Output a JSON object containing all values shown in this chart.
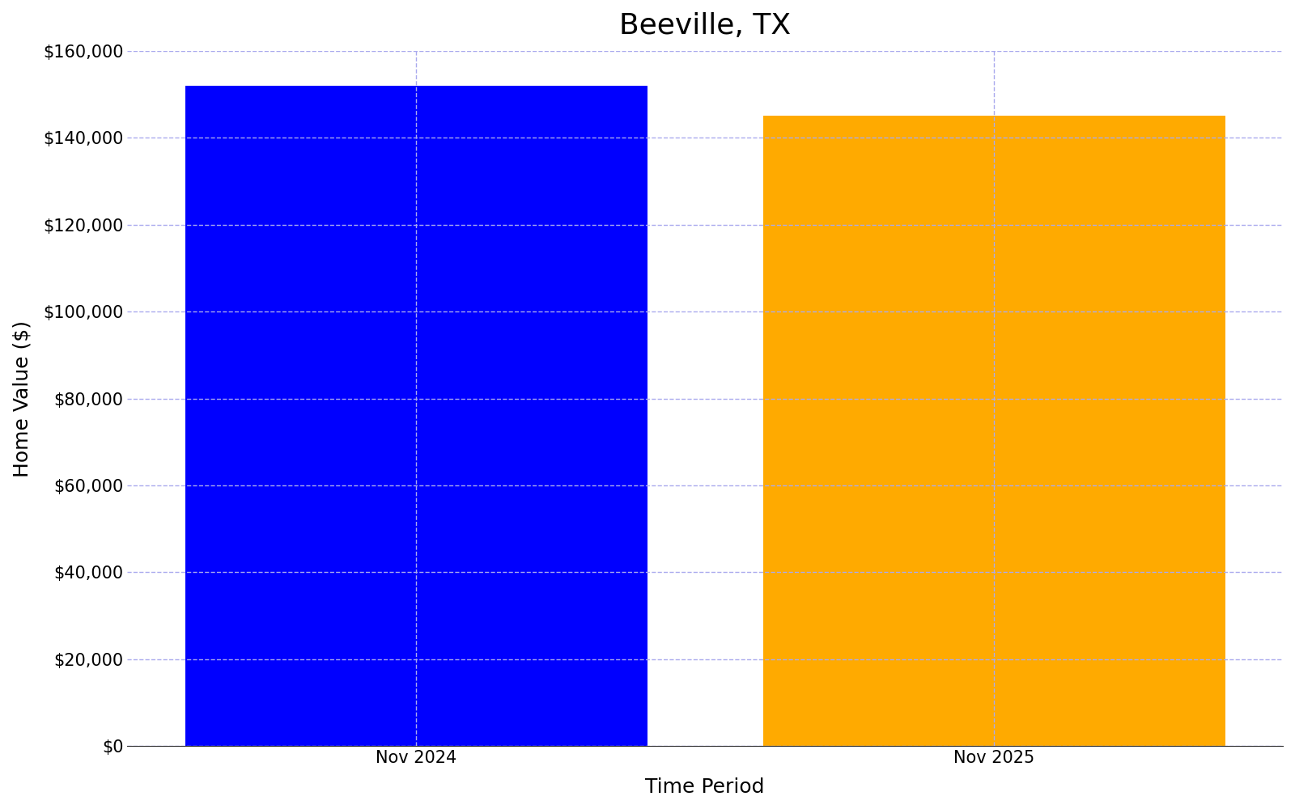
{
  "title": "Beeville, TX",
  "categories": [
    "Nov 2024",
    "Nov 2025"
  ],
  "values": [
    152000,
    145000
  ],
  "bar_colors": [
    "#0000ff",
    "#ffaa00"
  ],
  "xlabel": "Time Period",
  "ylabel": "Home Value ($)",
  "ylim": [
    0,
    160000
  ],
  "ytick_step": 20000,
  "grid_color": "#aaaaee",
  "background_color": "#ffffff",
  "title_fontsize": 26,
  "axis_label_fontsize": 18,
  "tick_label_fontsize": 15,
  "bar_width": 0.8,
  "xlim": [
    -0.5,
    1.5
  ]
}
